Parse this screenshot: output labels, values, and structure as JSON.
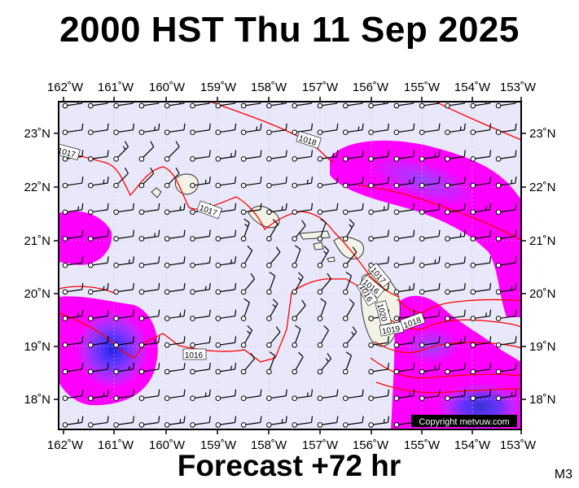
{
  "title": "2000 HST Thu 11 Sep 2025",
  "footer": "Forecast +72 hr",
  "model_code": "M3",
  "copyright": "Copyright metvuw.com",
  "map": {
    "lon_range": [
      -162.0,
      -153.0
    ],
    "lat_range": [
      17.5,
      23.6
    ],
    "lon_ticks": [
      "162˚W",
      "161˚W",
      "160˚W",
      "159˚W",
      "158˚W",
      "157˚W",
      "156˚W",
      "155˚W",
      "154˚W",
      "153˚W"
    ],
    "lat_ticks": [
      "18˚N",
      "19˚N",
      "20˚N",
      "21˚N",
      "22˚N",
      "23˚N"
    ],
    "background_color": "#e8e8fa",
    "isobar_color": "#ff0000",
    "rain_colors": [
      "#ff00ff",
      "#cc22ff",
      "#9933ff",
      "#6633ff",
      "#3333ee"
    ],
    "isobar_labels": [
      "1018",
      "1017",
      "1017",
      "1017",
      "1016",
      "1016",
      "1020",
      "1019",
      "1018",
      "1016"
    ]
  }
}
